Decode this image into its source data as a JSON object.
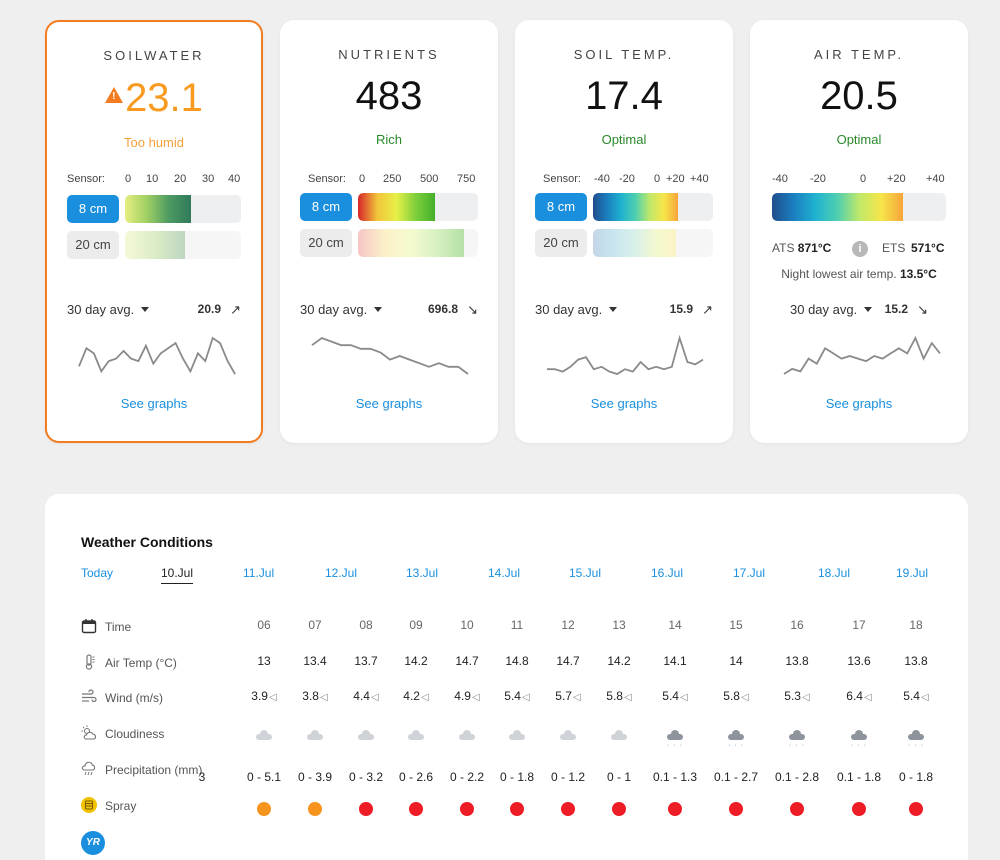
{
  "colors": {
    "accent": "#1a8fde",
    "warning": "#f47c20",
    "good": "#2a8a2a",
    "spray_orange": "#f7941d",
    "spray_red": "#ee1c24"
  },
  "cards": [
    {
      "title": "SOILWATER",
      "value": "23.1",
      "status": "Too humid",
      "state": "warning",
      "sensor_label": "Sensor:",
      "scale": [
        "0",
        "10",
        "20",
        "30",
        "40"
      ],
      "depths": [
        {
          "label": "8 cm",
          "fill_fraction": 0.57
        },
        {
          "label": "20 cm",
          "fill_fraction": 0.52
        }
      ],
      "avg_label": "30 day avg.",
      "avg_value": "20.9",
      "trend": "↗",
      "link": "See graphs",
      "sparkline": [
        8,
        22,
        18,
        4,
        12,
        14,
        20,
        14,
        12,
        24,
        10,
        18,
        22,
        26,
        14,
        4,
        18,
        12,
        30,
        26,
        12,
        2
      ]
    },
    {
      "title": "NUTRIENTS",
      "value": "483",
      "status": "Rich",
      "state": "good",
      "sensor_label": "Sensor:",
      "scale": [
        "0",
        "250",
        "500",
        "750"
      ],
      "depths": [
        {
          "label": "8 cm",
          "fill_fraction": 0.64
        },
        {
          "label": "20 cm",
          "fill_fraction": 0.88
        }
      ],
      "avg_label": "30 day avg.",
      "avg_value": "696.8",
      "trend": "↘",
      "link": "See graphs",
      "sparkline": [
        30,
        32,
        31,
        30,
        30,
        29,
        29,
        28,
        26,
        27,
        26,
        25,
        24,
        25,
        24,
        24,
        22
      ]
    },
    {
      "title": "SOIL TEMP.",
      "value": "17.4",
      "status": "Optimal",
      "state": "good",
      "sensor_label": "Sensor:",
      "scale": [
        "-40",
        "-20",
        "0",
        "+20",
        "+40"
      ],
      "depths": [
        {
          "label": "8 cm",
          "fill_fraction": 0.71
        },
        {
          "label": "20 cm",
          "fill_fraction": 0.69
        }
      ],
      "avg_label": "30 day avg.",
      "avg_value": "15.9",
      "trend": "↗",
      "link": "See graphs",
      "sparkline": [
        6,
        6,
        4,
        8,
        14,
        16,
        6,
        8,
        4,
        2,
        6,
        4,
        12,
        6,
        8,
        6,
        8,
        32,
        12,
        10,
        14
      ]
    },
    {
      "title": "AIR TEMP.",
      "value": "20.5",
      "status": "Optimal",
      "state": "good",
      "scale": [
        "-40",
        "-20",
        "0",
        "+20",
        "+40"
      ],
      "depths": [
        {
          "label": "",
          "fill_fraction": 0.75
        }
      ],
      "ats_label": "ATS",
      "ats_value": "871°C",
      "ets_label": "ETS",
      "ets_value": "571°C",
      "night_text": "Night lowest air temp.",
      "night_value": "13.5°C",
      "avg_label": "30 day avg.",
      "avg_value": "15.2",
      "trend": "↘",
      "link": "See graphs",
      "sparkline": [
        8,
        10,
        9,
        14,
        12,
        18,
        16,
        14,
        15,
        14,
        13,
        15,
        14,
        16,
        18,
        16,
        22,
        14,
        20,
        16
      ]
    }
  ],
  "weather": {
    "title": "Weather Conditions",
    "days": [
      "Today",
      "10.Jul",
      "11.Jul",
      "12.Jul",
      "13.Jul",
      "14.Jul",
      "15.Jul",
      "16.Jul",
      "17.Jul",
      "18.Jul",
      "19.Jul"
    ],
    "selected_day": 1,
    "rows": {
      "time": {
        "label": "Time",
        "values": [
          "06",
          "07",
          "08",
          "09",
          "10",
          "11",
          "12",
          "13",
          "14",
          "15",
          "16",
          "17",
          "18"
        ]
      },
      "air_temp": {
        "label": "Air Temp (°C)",
        "values": [
          "13",
          "13.4",
          "13.7",
          "14.2",
          "14.7",
          "14.8",
          "14.7",
          "14.2",
          "14.1",
          "14",
          "13.8",
          "13.6",
          "13.8"
        ]
      },
      "wind": {
        "label": "Wind (m/s)",
        "values": [
          "3.9",
          "3.8",
          "4.4",
          "4.2",
          "4.9",
          "5.4",
          "5.7",
          "5.8",
          "5.4",
          "5.8",
          "5.3",
          "6.4",
          "5.4"
        ]
      },
      "cloudiness": {
        "label": "Cloudiness",
        "values": [
          "cloud",
          "cloud",
          "cloud",
          "cloud",
          "cloud",
          "cloud",
          "cloud",
          "cloud",
          "rain",
          "rain",
          "rain",
          "rain",
          "rain"
        ]
      },
      "precipitation": {
        "label": "Precipitation (mm)",
        "leading_fragment": "3",
        "values": [
          "0 - 5.1",
          "0 - 3.9",
          "0 - 3.2",
          "0 - 2.6",
          "0 - 2.2",
          "0 - 1.8",
          "0 - 1.2",
          "0 - 1",
          "0.1 - 1.3",
          "0.1 - 2.7",
          "0.1 - 2.8",
          "0.1 - 1.8",
          "0 - 1.8"
        ]
      },
      "spray": {
        "label": "Spray",
        "values": [
          "orange",
          "orange",
          "red",
          "red",
          "red",
          "red",
          "red",
          "red",
          "red",
          "red",
          "red",
          "red",
          "red"
        ]
      }
    },
    "provider_logo": "YR"
  }
}
